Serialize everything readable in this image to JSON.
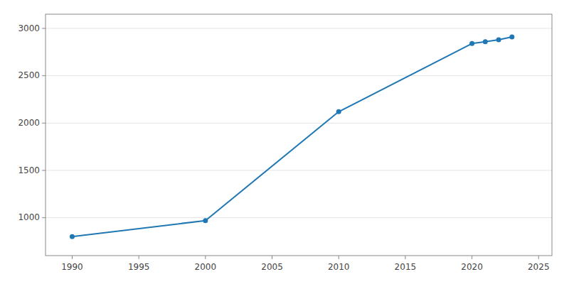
{
  "chart_data": {
    "type": "line",
    "x": [
      1990,
      2000,
      2010,
      2020,
      2021,
      2022,
      2023
    ],
    "values": [
      800,
      970,
      2120,
      2840,
      2860,
      2880,
      2910
    ],
    "xlim": [
      1988,
      2026
    ],
    "ylim": [
      600,
      3150
    ],
    "xticks": [
      1990,
      1995,
      2000,
      2005,
      2010,
      2015,
      2020,
      2025
    ],
    "yticks": [
      1000,
      1500,
      2000,
      2500,
      3000
    ],
    "grid": true,
    "marker": "circle"
  }
}
